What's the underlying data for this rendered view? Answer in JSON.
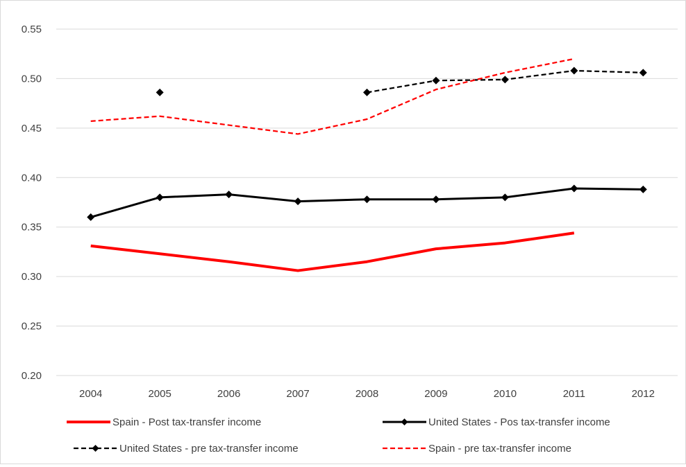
{
  "chart_data": {
    "type": "line",
    "title": "",
    "xlabel": "",
    "ylabel": "",
    "categories": [
      "2004",
      "2005",
      "2006",
      "2007",
      "2008",
      "2009",
      "2010",
      "2011",
      "2012"
    ],
    "ylim": [
      0.2,
      0.55
    ],
    "yticks": [
      "0.20",
      "0.25",
      "0.30",
      "0.35",
      "0.40",
      "0.45",
      "0.50",
      "0.55"
    ],
    "grid": true,
    "legend_position": "bottom",
    "series": [
      {
        "name": "Spain - Post tax-transfer income",
        "color": "#ff0000",
        "style": "solid",
        "markers": false,
        "values": [
          0.331,
          0.323,
          0.315,
          0.306,
          0.315,
          0.328,
          0.334,
          0.344,
          null
        ]
      },
      {
        "name": "United States - Pos tax-transfer income",
        "color": "#000000",
        "style": "solid",
        "markers": true,
        "values": [
          0.36,
          0.38,
          0.383,
          0.376,
          0.378,
          0.378,
          0.38,
          0.389,
          0.388
        ]
      },
      {
        "name": "United States - pre tax-transfer income",
        "color": "#000000",
        "style": "dashed",
        "markers": true,
        "values": [
          null,
          0.486,
          null,
          null,
          0.486,
          0.498,
          0.499,
          0.508,
          0.506
        ]
      },
      {
        "name": "Spain - pre tax-transfer income",
        "color": "#ff0000",
        "style": "dashed",
        "markers": false,
        "values": [
          0.457,
          0.462,
          0.453,
          0.444,
          0.459,
          0.489,
          0.506,
          0.52,
          null
        ]
      }
    ]
  }
}
